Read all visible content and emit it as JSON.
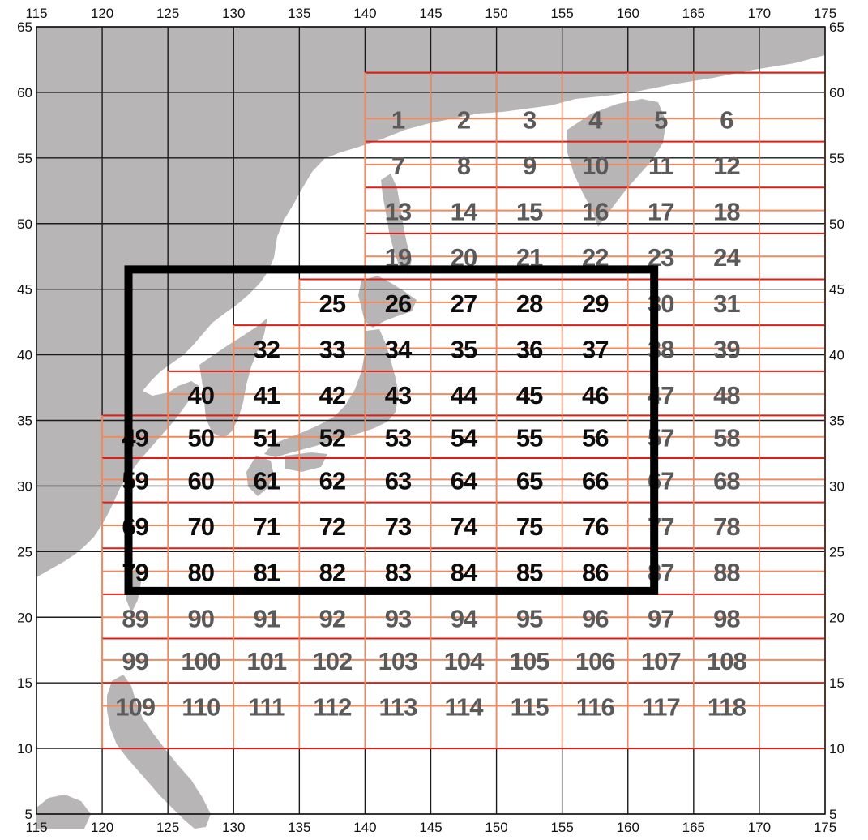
{
  "map": {
    "projection": "lon-lat",
    "lon_range": [
      115,
      175
    ],
    "lat_range": [
      5,
      65
    ],
    "x_ticks": [
      "115",
      "120",
      "125",
      "130",
      "135",
      "140",
      "145",
      "150",
      "155",
      "160",
      "165",
      "170",
      "175"
    ],
    "y_ticks": [
      "65",
      "60",
      "55",
      "50",
      "45",
      "40",
      "35",
      "30",
      "25",
      "20",
      "15",
      "10",
      "5"
    ],
    "colors": {
      "land": "#b7b5b6",
      "sea": "#ffffff",
      "graticule": "#1a1a1a",
      "grid_red": "#dd1e14",
      "grid_orange": "#f08a5e",
      "label_dark": "#0d0d0d",
      "label_gray": "#5a5a5a",
      "highlight_box": "#000000"
    },
    "grid_rows": [
      {
        "lat": 58.0,
        "lon_start": 140,
        "numbers": [
          "1",
          "2",
          "3",
          "4",
          "5",
          "6"
        ]
      },
      {
        "lat": 54.5,
        "lon_start": 140,
        "numbers": [
          "7",
          "8",
          "9",
          "10",
          "11",
          "12"
        ]
      },
      {
        "lat": 51.0,
        "lon_start": 140,
        "numbers": [
          "13",
          "14",
          "15",
          "16",
          "17",
          "18"
        ]
      },
      {
        "lat": 47.5,
        "lon_start": 140,
        "numbers": [
          "19",
          "20",
          "21",
          "22",
          "23",
          "24"
        ]
      },
      {
        "lat": 44.0,
        "lon_start": 135,
        "numbers": [
          "25",
          "26",
          "27",
          "28",
          "29",
          "30",
          "31"
        ]
      },
      {
        "lat": 40.5,
        "lon_start": 130,
        "numbers": [
          "32",
          "33",
          "34",
          "35",
          "36",
          "37",
          "38",
          "39"
        ]
      },
      {
        "lat": 37.0,
        "lon_start": 125,
        "numbers": [
          "40",
          "41",
          "42",
          "43",
          "44",
          "45",
          "46",
          "47",
          "48"
        ]
      },
      {
        "lat": 33.75,
        "lon_start": 120,
        "numbers": [
          "49",
          "50",
          "51",
          "52",
          "53",
          "54",
          "55",
          "56",
          "57",
          "58"
        ]
      },
      {
        "lat": 30.5,
        "lon_start": 120,
        "numbers": [
          "59",
          "60",
          "61",
          "62",
          "63",
          "64",
          "65",
          "66",
          "67",
          "68"
        ]
      },
      {
        "lat": 27.0,
        "lon_start": 120,
        "numbers": [
          "69",
          "70",
          "71",
          "72",
          "73",
          "74",
          "75",
          "76",
          "77",
          "78"
        ]
      },
      {
        "lat": 23.5,
        "lon_start": 120,
        "numbers": [
          "79",
          "80",
          "81",
          "82",
          "83",
          "84",
          "85",
          "86",
          "87",
          "88"
        ]
      },
      {
        "lat": 20.0,
        "lon_start": 120,
        "numbers": [
          "89",
          "90",
          "91",
          "92",
          "93",
          "94",
          "95",
          "96",
          "97",
          "98"
        ]
      },
      {
        "lat": 16.75,
        "lon_start": 120,
        "numbers": [
          "99",
          "100",
          "101",
          "102",
          "103",
          "104",
          "105",
          "106",
          "107",
          "108"
        ]
      },
      {
        "lat": 13.25,
        "lon_start": 120,
        "numbers": [
          "109",
          "110",
          "111",
          "112",
          "113",
          "114",
          "115",
          "116",
          "117",
          "118"
        ]
      }
    ],
    "highlight_region": {
      "lon": [
        122,
        162
      ],
      "lat": [
        22,
        46.5
      ]
    }
  }
}
